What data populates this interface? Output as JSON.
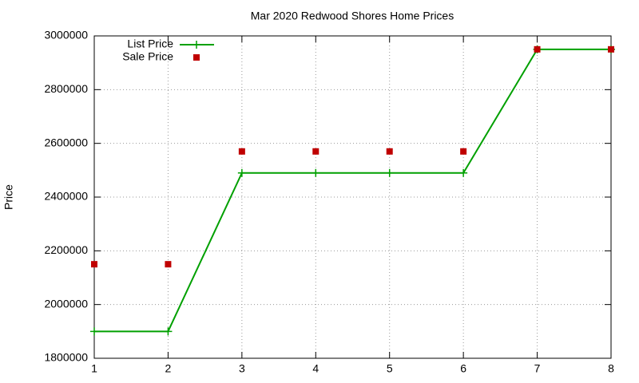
{
  "chart_data": {
    "type": "line",
    "title": "Mar 2020 Redwood Shores Home Prices",
    "y_label": "Price",
    "x": [
      1,
      2,
      3,
      4,
      5,
      6,
      7,
      8
    ],
    "series": [
      {
        "name": "List Price",
        "color": "#00a000",
        "style": "linespoints",
        "marker": "plus",
        "values": [
          1900000,
          1900000,
          2490000,
          2490000,
          2490000,
          2490000,
          2950000,
          2950000
        ]
      },
      {
        "name": "Sale Price",
        "color": "#c00000",
        "style": "points",
        "marker": "square",
        "values": [
          2150000,
          2150000,
          2570000,
          2570000,
          2570000,
          2570000,
          2950000,
          2950000
        ]
      }
    ],
    "xlim": [
      1,
      8
    ],
    "xticks": [
      1,
      2,
      3,
      4,
      5,
      6,
      7,
      8
    ],
    "ylim": [
      1800000,
      3000000
    ],
    "yticks": [
      1800000,
      2000000,
      2200000,
      2400000,
      2600000,
      2800000,
      3000000
    ],
    "grid": true,
    "legend": "top-left"
  }
}
